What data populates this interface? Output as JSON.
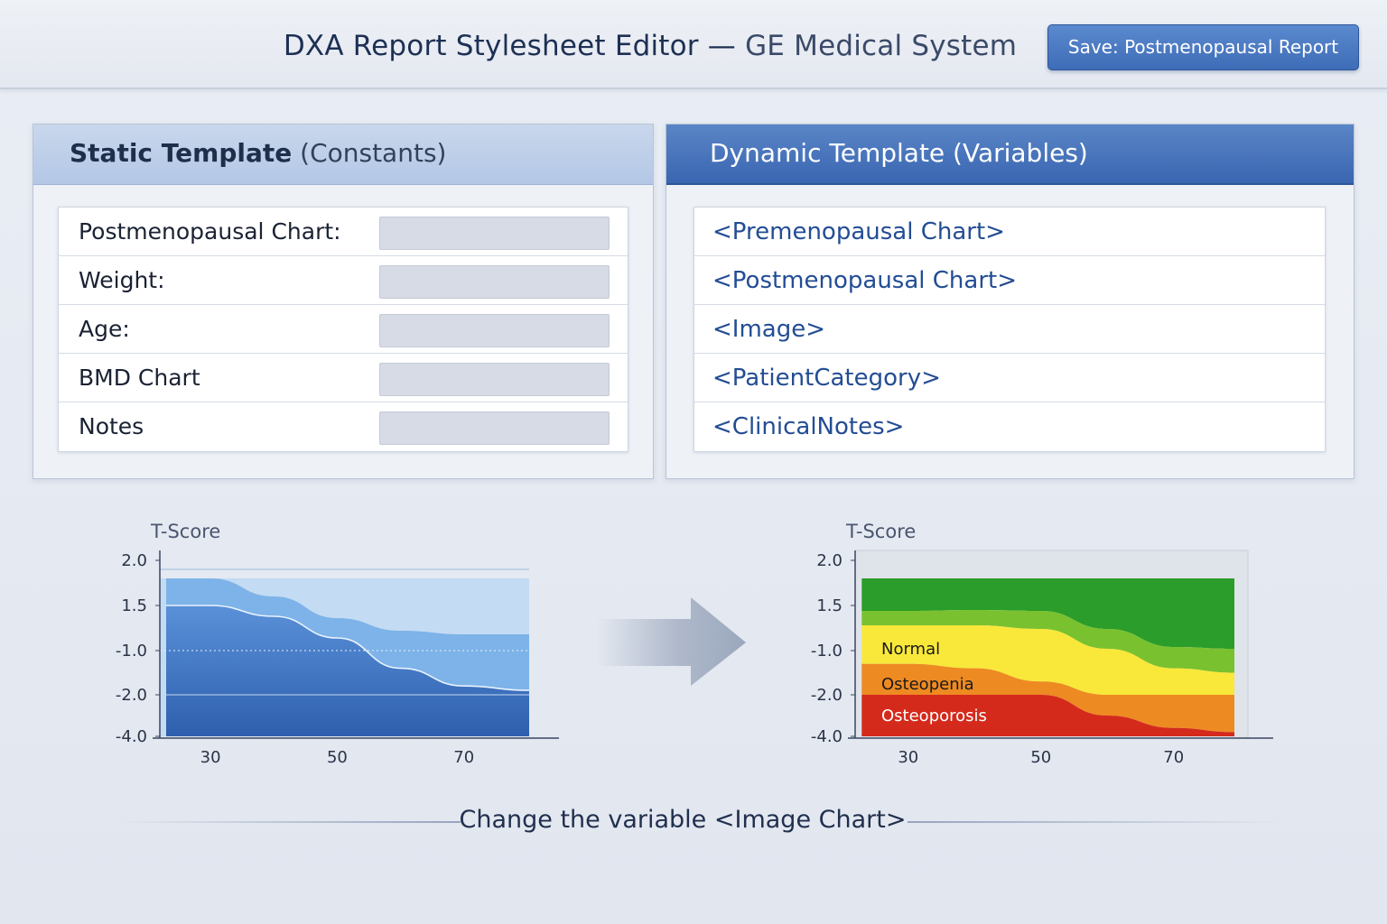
{
  "header": {
    "title_main": "DXA Report Stylesheet Editor — ",
    "title_sub": "GE Medical System",
    "save_button": "Save: Postmenopausal Report"
  },
  "static_panel": {
    "title_bold": "Static Template",
    "title_paren": "(Constants)",
    "rows": [
      {
        "label": "Postmenopausal Chart:"
      },
      {
        "label": "Weight:"
      },
      {
        "label": "Age:"
      },
      {
        "label": "BMD Chart"
      },
      {
        "label": "Notes"
      }
    ]
  },
  "dynamic_panel": {
    "title": "Dynamic Template (Variables)",
    "rows": [
      {
        "label": "<Premenopausal Chart>"
      },
      {
        "label": "<Postmenopausal Chart>"
      },
      {
        "label": "<Image>"
      },
      {
        "label": "<PatientCategory>"
      },
      {
        "label": "<ClinicalNotes>"
      }
    ]
  },
  "chart_data": [
    {
      "type": "area",
      "ylabel": "T-Score",
      "y_ticks": [
        "2.0",
        "1.5",
        "-1.0",
        "-2.0",
        "-4.0"
      ],
      "x_ticks": [
        30,
        50,
        70
      ],
      "x": [
        23,
        30,
        40,
        50,
        60,
        70,
        81
      ],
      "series": [
        {
          "values": [
            1.5,
            1.5,
            0.9,
            -0.3,
            -1.4,
            -1.8,
            -1.9
          ]
        },
        {
          "values": [
            1.8,
            1.8,
            1.6,
            0.8,
            0.1,
            -0.1,
            -0.1
          ]
        }
      ],
      "colors": [
        "#3b71c0",
        "#7db3e8",
        "#c3dbf3"
      ],
      "ylim": [
        -4.0,
        2.0
      ],
      "xlim": [
        22,
        85
      ]
    },
    {
      "type": "area",
      "ylabel": "T-Score",
      "y_ticks": [
        "2.0",
        "1.5",
        "-1.0",
        "-2.0",
        "-4.0"
      ],
      "x_ticks": [
        30,
        50,
        70
      ],
      "x": [
        23,
        30,
        40,
        50,
        60,
        70,
        81
      ],
      "zones": [
        {
          "name": "Osteoporosis",
          "color": "#d42a1c"
        },
        {
          "name": "Osteopenia",
          "color": "#ee8a22"
        },
        {
          "name": "Normal",
          "color": "#f9e83a"
        },
        {
          "name": "",
          "color": "#7ac12f"
        },
        {
          "name": "",
          "color": "#2a9d2a"
        }
      ],
      "ylim": [
        -4.0,
        2.0
      ],
      "xlim": [
        22,
        85
      ]
    }
  ],
  "caption": "Change the variable <Image Chart>"
}
